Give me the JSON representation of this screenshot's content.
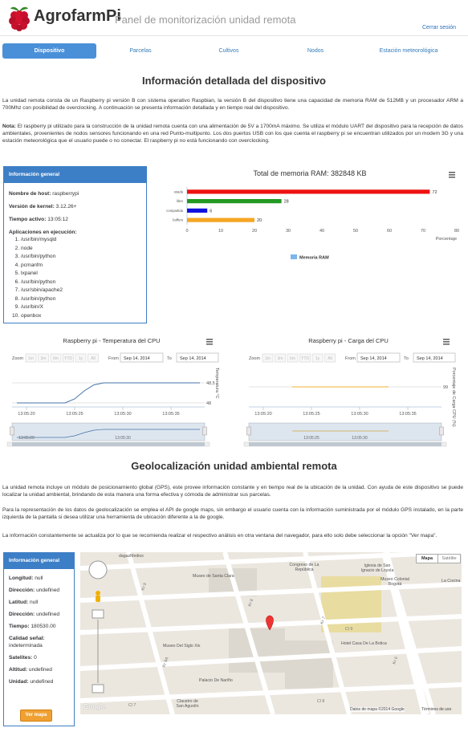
{
  "header": {
    "brand": "AgrofarmPi",
    "subtitle": "Panel de monitorización unidad remota",
    "logout": "Cerrar sesión"
  },
  "nav": [
    "Dispositivo",
    "Parcelas",
    "Cultivos",
    "Nodos",
    "Estación meteorológica"
  ],
  "device": {
    "title": "Información detallada del dispositivo",
    "intro": "La unidad remota consta de un Raspberry pi versión B con sistema operativo Raspbian, la versión B del dispositivo tiene una capacidad de memoria RAM de 512MB y un procesador ARM a 700Mhz con posibilidad de overclocking. A continuación se presenta información detallada y en tiempo real del dispositivo.",
    "note_label": "Nota:",
    "note": "El raspberry pi utilizado para la construcción de la unidad remota cuenta con una alimentación de 5V a 1700mA máximo. Se utiliza el módulo UART del dispositivo para la recepción de datos ambientales, provenientes de nodos sensores funcionando en una red Punto-multipunto. Los dos puertos USB con los que cuenta el raspberry pi se encuentran utilizados por un modem 3G y una estación meteorológica que el usuario puede o no conectar. El raspberry pi no está funcionando con overclocking."
  },
  "info_panel": {
    "title": "Información general",
    "fields": [
      {
        "label": "Nombre de host:",
        "value": "raspberrypi"
      },
      {
        "label": "Versión de kernel:",
        "value": "3.12.26+"
      },
      {
        "label": "Tiempo activo:",
        "value": "13:05:12"
      }
    ],
    "apps_label": "Aplicaciones en ejecución:",
    "apps": [
      "/usr/bin/mysqld",
      "node",
      "/usr/bin/python",
      "pcmanfm",
      "lxpanel",
      "/usr/bin/python",
      "/usr/sbin/apache2",
      "/usr/bin/python",
      "/usr/bin/X",
      "openbox"
    ]
  },
  "chart_data": [
    {
      "type": "bar",
      "orientation": "horizontal",
      "title": "Total de memoria RAM: 382848 KB",
      "categories": [
        "usada",
        "libre",
        "compartida",
        "buffers"
      ],
      "series": [
        {
          "name": "Memoria RAM",
          "color": "#7cb5ec",
          "values": [
            72,
            28,
            6,
            20
          ],
          "colors": [
            "#ee1111",
            "#229922",
            "#1111dd",
            "#f5a623"
          ]
        }
      ],
      "xlim": [
        0,
        80
      ],
      "xticks": [
        0,
        10,
        20,
        30,
        40,
        50,
        60,
        70,
        80
      ],
      "xlabel": "Porcentaje",
      "grid": false
    },
    {
      "type": "line",
      "title": "Raspberry pi - Temperatura del CPU",
      "zoom_label": "Zoom",
      "zoom_buttons": [
        "1m",
        "3m",
        "6m",
        "YTD",
        "1y",
        "All"
      ],
      "from_label": "From",
      "from": "Sep 14, 2014",
      "to_label": "To",
      "to": "Sep 14, 2014",
      "x": [
        "13:05:19",
        "13:05:20",
        "13:05:21",
        "13:05:22",
        "13:05:23",
        "13:05:24",
        "13:05:25",
        "13:05:26",
        "13:05:27",
        "13:05:28",
        "13:05:29",
        "13:05:30",
        "13:05:31",
        "13:05:32",
        "13:05:33",
        "13:05:34",
        "13:05:35",
        "13:05:36",
        "13:05:37",
        "13:05:38"
      ],
      "values": [
        48,
        48,
        48,
        48,
        48,
        48,
        48.1,
        48.3,
        48.45,
        48.5,
        48.5,
        48.5,
        48.5,
        48.5,
        48.5,
        48.5,
        48.5,
        48.5,
        48.5,
        48.5
      ],
      "color": "#4572a7",
      "ylabel": "Temperatura °C",
      "ylim": [
        47.9,
        48.8
      ],
      "yticks": [
        48,
        {
          "value": 48.5,
          "label": "48,5"
        }
      ],
      "xticks": [
        "13:05:20",
        "13:05:25",
        "13:05:30",
        "13:05:35"
      ],
      "navigator_ticks": [
        "13:05:20",
        "13:05:30"
      ],
      "grid": true
    },
    {
      "type": "line",
      "title": "Raspberry pi - Carga del CPU",
      "zoom_label": "Zoom",
      "zoom_buttons": [
        "1m",
        "3m",
        "6m",
        "YTD",
        "1y",
        "All"
      ],
      "from_label": "From",
      "from": "Sep 14, 2014",
      "to_label": "To",
      "to": "Sep 14, 2014",
      "x": [
        "13:05:19",
        "13:05:20",
        "13:05:21",
        "13:05:22",
        "13:05:23",
        "13:05:24",
        "13:05:25",
        "13:05:26",
        "13:05:27",
        "13:05:28",
        "13:05:29",
        "13:05:30",
        "13:05:31",
        "13:05:32",
        "13:05:33",
        "13:05:34",
        "13:05:35",
        "13:05:36",
        "13:05:37",
        "13:05:38"
      ],
      "values": [
        null,
        null,
        null,
        null,
        99,
        99,
        99,
        99,
        99,
        99,
        99,
        99,
        99,
        99,
        99,
        null,
        null,
        null,
        null,
        null
      ],
      "color": "#f0b030",
      "ylabel": "Porcentaje de Carga CPU (%)",
      "ylim": [
        98,
        99.8
      ],
      "yticks": [
        99
      ],
      "xticks": [
        "13:05:20",
        "13:05:25",
        "13:05:30",
        "13:05:35"
      ],
      "navigator_ticks": [
        "13:05:25",
        "13:05:30"
      ],
      "grid": true
    }
  ],
  "geo": {
    "title": "Geolocalización unidad ambiental remota",
    "paragraphs": [
      "La unidad remota incluye un módulo de posicionamiento global (GPS), este provee información constante y en tiempo real de la ubicación de la unidad. Con ayuda de este dispositivo se puede localizar la unidad ambiental, brindando de esta manera una forma efectiva y cómoda de administrar sus parcelas.",
      "Para la representación de los datos de geolocalización se emplea el API de google maps, sin embargo el usuario cuenta con la información suministrada por el módulo GPS instalado, en la parte izquierda de la pantalla si desea utilizar una herramienta de ubicación diferente a la de google.",
      "La información constantemente se actualiza por lo que se recomienda realizar el respectivo análisis en otra ventana del navegador, para ello solo debe seleccionar la opción \"Ver mapa\"."
    ]
  },
  "gps_panel": {
    "title": "Información general",
    "fields": [
      {
        "label": "Longitud:",
        "value": "null"
      },
      {
        "label": "Dirección:",
        "value": "undefined"
      },
      {
        "label": "Latitud:",
        "value": "null"
      },
      {
        "label": "Dirección:",
        "value": "undefined"
      },
      {
        "label": "Tiempo:",
        "value": "180530.00"
      },
      {
        "label": "Calidad señal:",
        "value": "indeterminada"
      },
      {
        "label": "Satelites:",
        "value": "0"
      },
      {
        "label": "Altitud:",
        "value": "undefined"
      },
      {
        "label": "Unidad:",
        "value": "undefined"
      }
    ],
    "button": "Ver mapa"
  },
  "map": {
    "buttons": [
      "Mapa",
      "Satélite"
    ],
    "places": [
      "dagazMedios",
      "Museo de Santa Clara",
      "Congreso de La República",
      "Iglesia de San Ignacio de Loyola",
      "Museo Colonial Bogotá",
      "La Cocina",
      "Hotel Casa De La Botica",
      "Museo Del Siglo Xix",
      "Palacio De Nariño",
      "Claustro de San Agustín"
    ],
    "streets": [
      "Kr 9",
      "Kr 8",
      "Kr 7",
      "Cl 9",
      "Kr 6",
      "Kr 8A",
      "Cl 7",
      "Cl 8"
    ],
    "logo": "Google",
    "attribution": "Datos de mapa ©2014 Google",
    "terms": "Términos de uso"
  }
}
